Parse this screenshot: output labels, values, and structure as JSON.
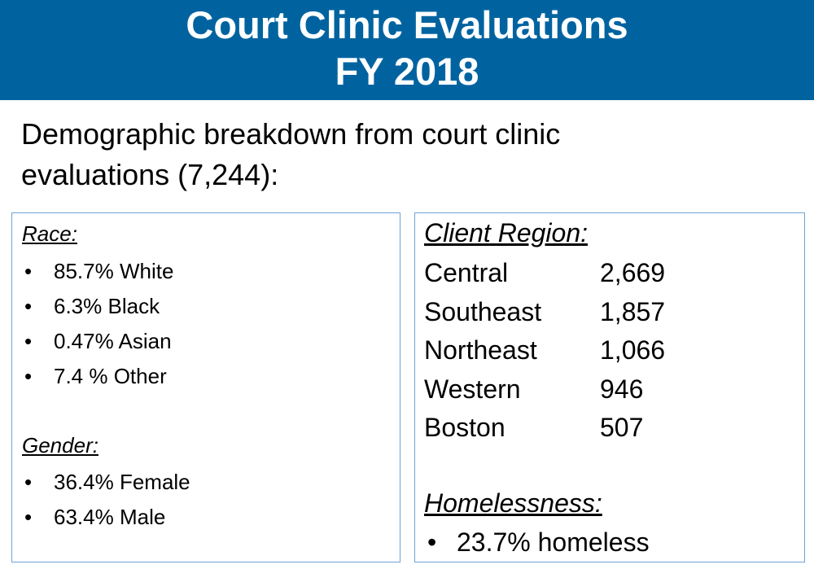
{
  "header": {
    "title_lines": [
      "Court Clinic Evaluations",
      "FY 2018"
    ]
  },
  "intro_lines": [
    "Demographic breakdown from court clinic",
    "evaluations (7,244):"
  ],
  "race": {
    "heading": "Race:",
    "items": [
      "85.7% White",
      "6.3% Black",
      "0.47% Asian",
      "7.4 % Other"
    ]
  },
  "gender": {
    "heading": "Gender:",
    "items": [
      "36.4% Female",
      "63.4% Male"
    ]
  },
  "client_region": {
    "heading": "Client Region:",
    "rows": [
      [
        "Central",
        "2,669"
      ],
      [
        "Southeast",
        "1,857"
      ],
      [
        "Northeast",
        "1,066"
      ],
      [
        "Western",
        "946"
      ],
      [
        "Boston",
        "507"
      ]
    ]
  },
  "homelessness": {
    "heading": "Homelessness:",
    "items": [
      "23.7% homeless"
    ]
  }
}
